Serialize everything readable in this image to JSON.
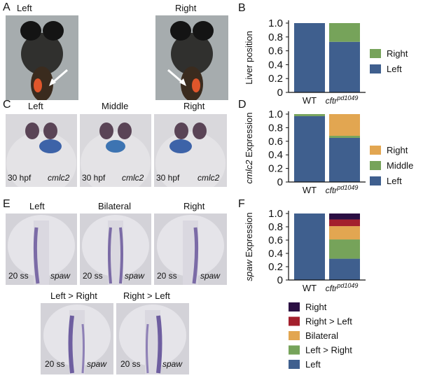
{
  "panels": {
    "A": {
      "letter": "A",
      "left_label": "Left",
      "right_label": "Right"
    },
    "B": {
      "letter": "B"
    },
    "C": {
      "letter": "C",
      "labels": [
        "Left",
        "Middle",
        "Right"
      ],
      "stage": "30 hpf",
      "gene": "cmlc2"
    },
    "D": {
      "letter": "D"
    },
    "E": {
      "letter": "E",
      "labels_top": [
        "Left",
        "Bilateral",
        "Right"
      ],
      "labels_bottom": [
        "Left > Right",
        "Right > Left"
      ],
      "stage": "20 ss",
      "gene": "spaw"
    },
    "F": {
      "letter": "F"
    }
  },
  "x_labels": {
    "wt": "WT",
    "mutant_base": "cftr",
    "mutant_sup": "pd1049"
  },
  "colors": {
    "left": "#3f5f8e",
    "right_green": "#76a35a",
    "right_orange": "#e2a651",
    "middle": "#76a35a",
    "rl": "#a3202d",
    "right_dark": "#2b0f43"
  },
  "chart_data": [
    {
      "type": "bar",
      "stacked": true,
      "title": "",
      "xlabel": "",
      "ylabel": "Liver position",
      "ylabel_italic_part": "",
      "ylim": [
        0,
        1.0
      ],
      "yticks": [
        "0",
        "0.2",
        "0.4",
        "0.6",
        "0.8",
        "1.0"
      ],
      "categories": [
        "WT",
        "cftr pd1049"
      ],
      "series": [
        {
          "name": "Left",
          "color": "#3f5f8e",
          "values": [
            1.0,
            0.73
          ]
        },
        {
          "name": "Right",
          "color": "#76a35a",
          "values": [
            0.0,
            0.27
          ]
        }
      ],
      "legend": [
        "Right",
        "Left"
      ]
    },
    {
      "type": "bar",
      "stacked": true,
      "title": "",
      "xlabel": "",
      "ylabel": " Expression",
      "ylabel_italic_part": "cmlc2",
      "ylim": [
        0,
        1.0
      ],
      "yticks": [
        "0",
        "0.2",
        "0.4",
        "0.6",
        "0.8",
        "1.0"
      ],
      "categories": [
        "WT",
        "cftr pd1049"
      ],
      "series": [
        {
          "name": "Left",
          "color": "#3f5f8e",
          "values": [
            0.97,
            0.65
          ]
        },
        {
          "name": "Middle",
          "color": "#76a35a",
          "values": [
            0.03,
            0.03
          ]
        },
        {
          "name": "Right",
          "color": "#e2a651",
          "values": [
            0.0,
            0.32
          ]
        }
      ],
      "legend": [
        "Right",
        "Middle",
        "Left"
      ]
    },
    {
      "type": "bar",
      "stacked": true,
      "title": "",
      "xlabel": "",
      "ylabel": " Expression",
      "ylabel_italic_part": "spaw",
      "ylim": [
        0,
        1.0
      ],
      "yticks": [
        "0",
        "0.2",
        "0.4",
        "0.6",
        "0.8",
        "1.0"
      ],
      "categories": [
        "WT",
        "cftr pd1049"
      ],
      "series": [
        {
          "name": "Left",
          "color": "#3f5f8e",
          "values": [
            1.0,
            0.32
          ]
        },
        {
          "name": "Left > Right",
          "color": "#76a35a",
          "values": [
            0.0,
            0.29
          ]
        },
        {
          "name": "Bilateral",
          "color": "#e2a651",
          "values": [
            0.0,
            0.2
          ]
        },
        {
          "name": "Right > Left",
          "color": "#a3202d",
          "values": [
            0.0,
            0.1
          ]
        },
        {
          "name": "Right",
          "color": "#2b0f43",
          "values": [
            0.0,
            0.09
          ]
        }
      ],
      "legend": [
        "Right",
        "Right > Left",
        "Bilateral",
        "Left > Right",
        "Left"
      ]
    }
  ]
}
